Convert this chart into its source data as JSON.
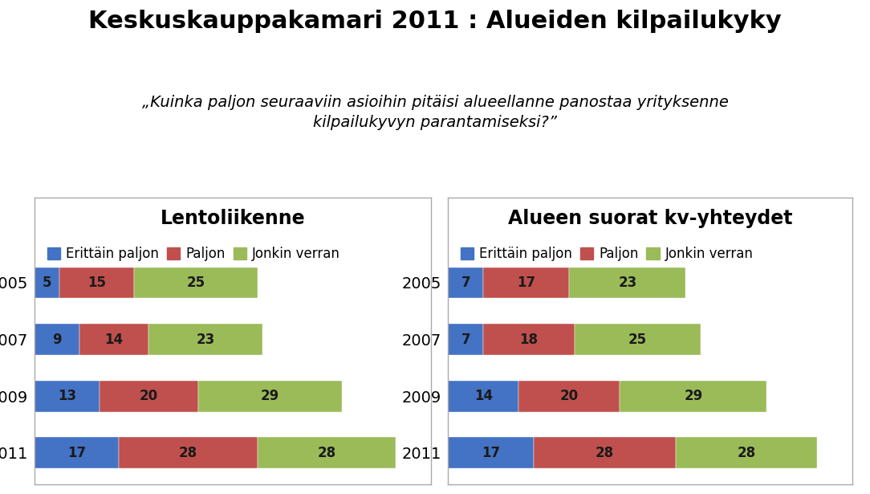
{
  "title": "Keskuskauppakamari 2011 : Alueiden kilpailukyky",
  "subtitle": "„Kuinka paljon seuraaviin asioihin pitäisi alueellanne panostaa yrityksenne\nkilpailukyvyn parantamiseksi?”",
  "panel1_title": "Lentoliikenne",
  "panel2_title": "Alueen suorat kv-yhteydet",
  "years": [
    "2005",
    "2007",
    "2009",
    "2011"
  ],
  "legend_labels": [
    "Erittäin paljon",
    "Paljon",
    "Jonkin verran"
  ],
  "colors": [
    "#4472C4",
    "#C0504D",
    "#9BBB59"
  ],
  "panel1_data": [
    [
      5,
      15,
      25
    ],
    [
      9,
      14,
      23
    ],
    [
      13,
      20,
      29
    ],
    [
      17,
      28,
      28
    ]
  ],
  "panel2_data": [
    [
      7,
      17,
      23
    ],
    [
      7,
      18,
      25
    ],
    [
      14,
      20,
      29
    ],
    [
      17,
      28,
      28
    ]
  ],
  "bar_height": 0.55,
  "xlim": [
    0,
    80
  ],
  "title_fontsize": 22,
  "subtitle_fontsize": 14,
  "panel_title_fontsize": 17,
  "legend_fontsize": 12,
  "label_fontsize": 12,
  "year_fontsize": 14,
  "bg_color": "#FFFFFF",
  "panel_bg": "#FFFFFF",
  "text_color": "#000000",
  "label_color": "#1a1a1a"
}
